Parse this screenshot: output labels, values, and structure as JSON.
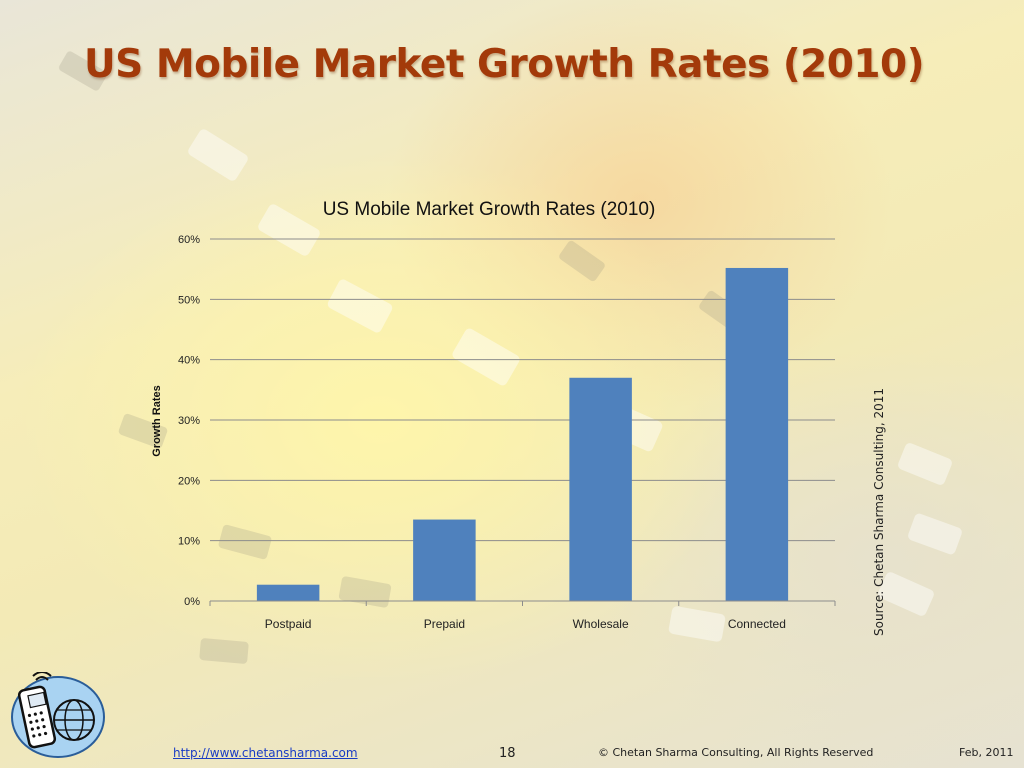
{
  "slide": {
    "title": "US Mobile Market Growth Rates (2010)",
    "source": "Source: Chetan Sharma Consulting, 2011"
  },
  "footer": {
    "url": "http://www.chetansharma.com",
    "page_number": "18",
    "copyright": "© Chetan Sharma Consulting, All Rights Reserved",
    "date": "Feb, 2011"
  },
  "colors": {
    "bar": "#4f81bd",
    "title": "#a33a0a",
    "gridline": "#8c8c8c"
  },
  "chart_data": {
    "type": "bar",
    "title": "US Mobile Market Growth Rates (2010)",
    "xlabel": "",
    "ylabel": "Growth Rates",
    "categories": [
      "Postpaid",
      "Prepaid",
      "Wholesale",
      "Connected"
    ],
    "values": [
      2.7,
      13.5,
      37,
      55.2
    ],
    "unit": "%",
    "ylim": [
      0,
      60
    ],
    "yticks": [
      "0%",
      "10%",
      "20%",
      "30%",
      "40%",
      "50%",
      "60%"
    ],
    "ytick_values": [
      0,
      10,
      20,
      30,
      40,
      50,
      60
    ],
    "grid": true,
    "legend": "none"
  }
}
